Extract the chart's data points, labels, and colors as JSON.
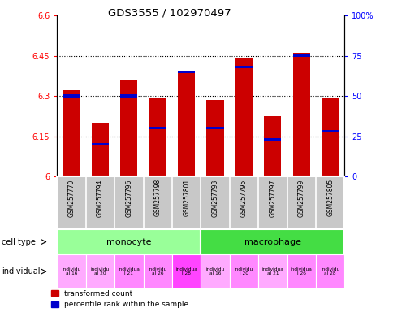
{
  "title": "GDS3555 / 102970497",
  "samples": [
    "GSM257770",
    "GSM257794",
    "GSM257796",
    "GSM257798",
    "GSM257801",
    "GSM257793",
    "GSM257795",
    "GSM257797",
    "GSM257799",
    "GSM257805"
  ],
  "red_values": [
    6.32,
    6.2,
    6.36,
    6.295,
    6.385,
    6.285,
    6.44,
    6.225,
    6.46,
    6.295
  ],
  "blue_values_pct": [
    50,
    20,
    50,
    30,
    65,
    30,
    68,
    23,
    75,
    28
  ],
  "ylim_left": [
    6.0,
    6.6
  ],
  "ylim_right": [
    0,
    100
  ],
  "yticks_left": [
    6.0,
    6.15,
    6.3,
    6.45,
    6.6
  ],
  "yticks_right": [
    0,
    25,
    50,
    75,
    100
  ],
  "ytick_labels_left": [
    "6",
    "6.15",
    "6.3",
    "6.45",
    "6.6"
  ],
  "ytick_labels_right": [
    "0",
    "25",
    "50",
    "75",
    "100%"
  ],
  "bar_color_red": "#cc0000",
  "bar_color_blue": "#0000cc",
  "legend_red": "transformed count",
  "legend_blue": "percentile rank within the sample",
  "base_value": 6.0,
  "monocyte_color": "#99ff99",
  "macrophage_color": "#44dd44",
  "indiv_labels": [
    "individu\nal 16",
    "individu\nal 20",
    "individua\nl 21",
    "individu\nal 26",
    "individua\nl 28",
    "individu\nal 16",
    "individu\nl 20",
    "individua\nal 21",
    "individua\nl 26",
    "individu\nal 28"
  ],
  "indiv_colors": [
    "#ffaaff",
    "#ffaaff",
    "#ff88ff",
    "#ff88ff",
    "#ff44ff",
    "#ffaaff",
    "#ff88ff",
    "#ffaaff",
    "#ff88ff",
    "#ff88ff"
  ]
}
